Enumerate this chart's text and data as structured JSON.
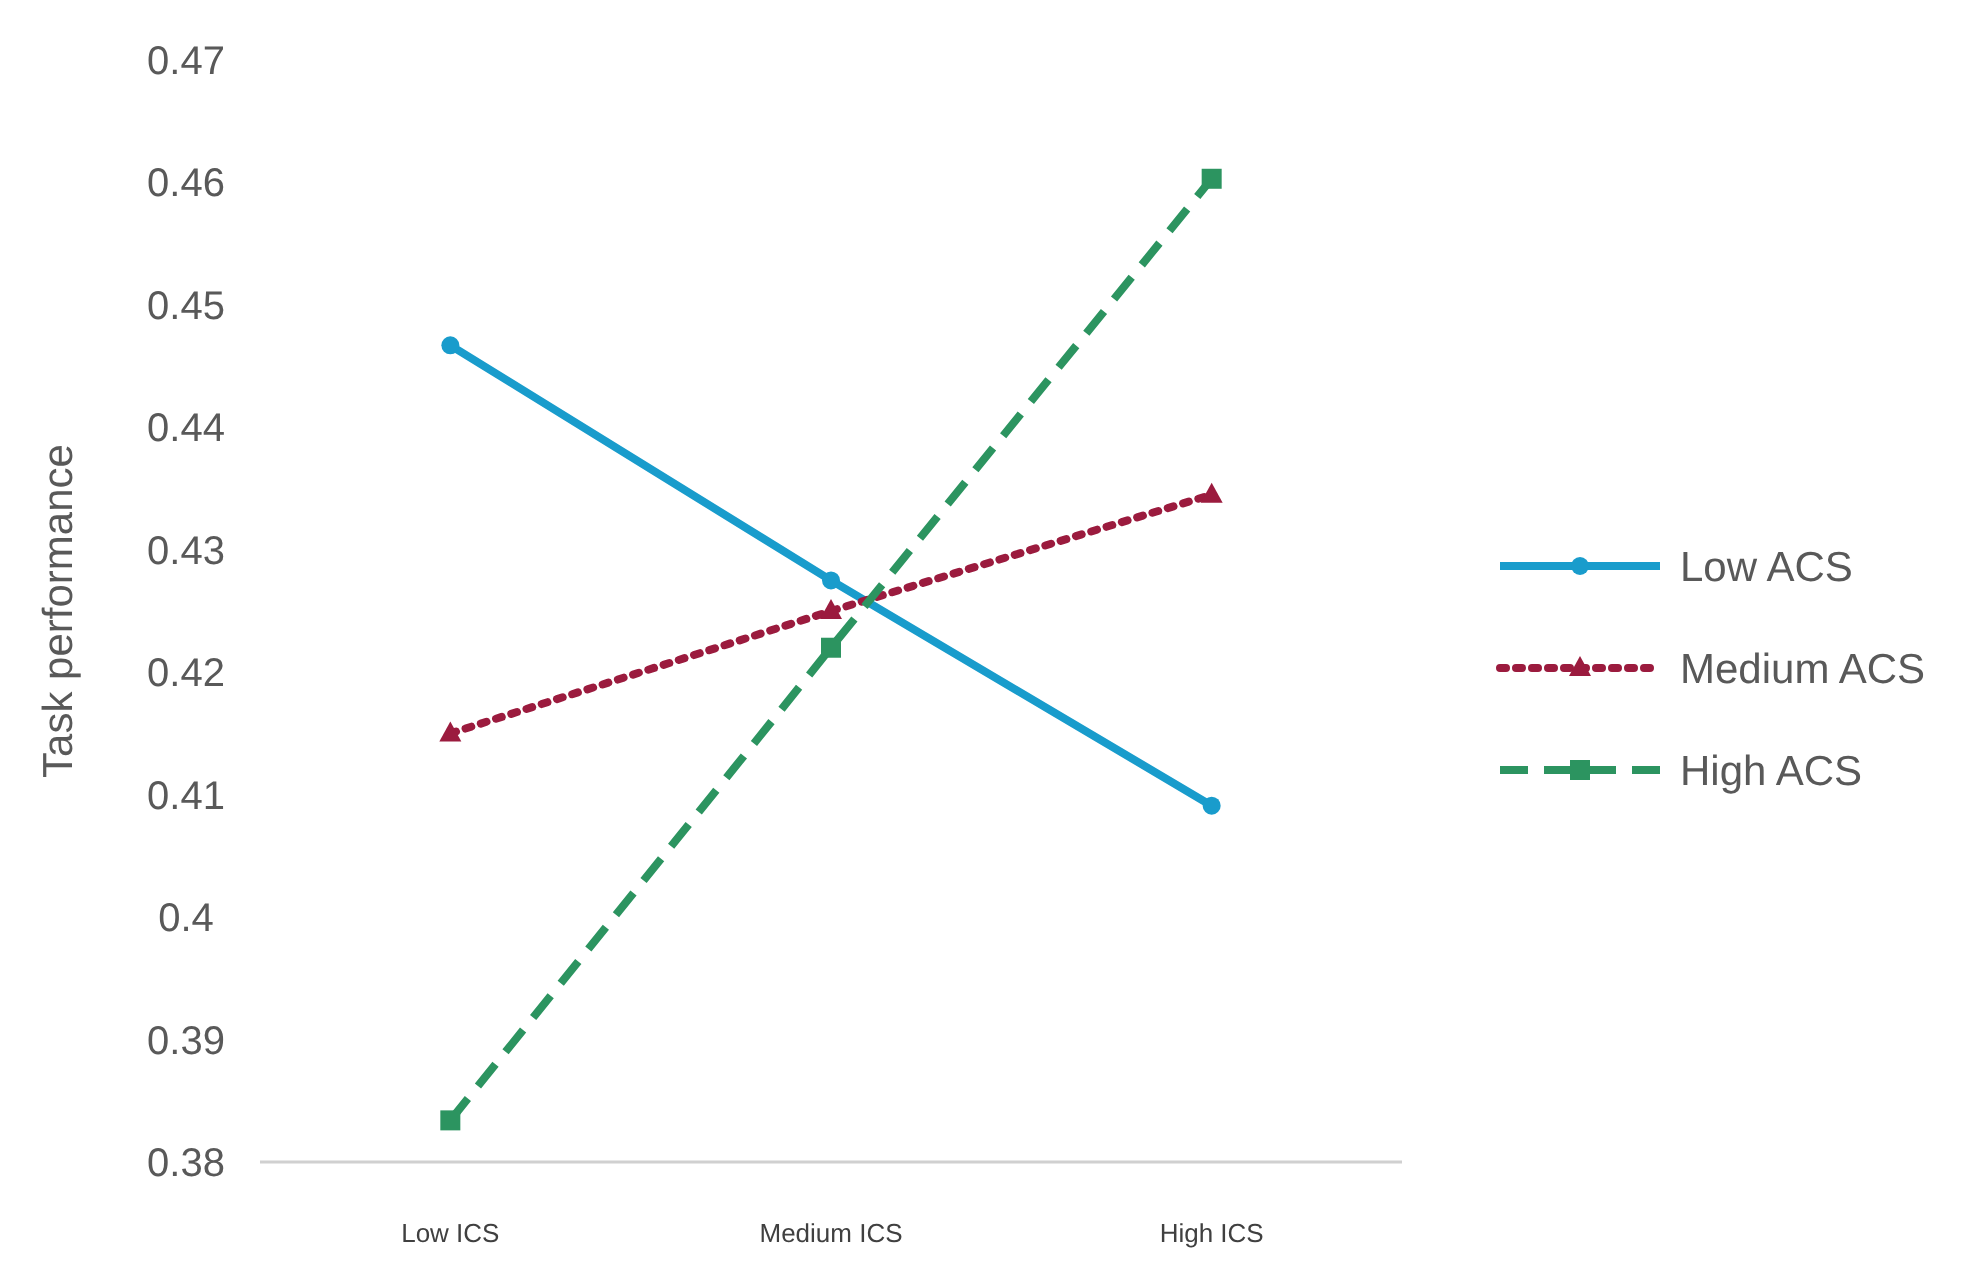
{
  "chart_data": {
    "type": "line",
    "ylabel": "Task performance",
    "categories": [
      "Low ICS",
      "Medium ICS",
      "High ICS"
    ],
    "series": [
      {
        "name": "Low ACS",
        "color": "#199ccc",
        "values": [
          0.4467,
          0.4275,
          0.4091
        ],
        "marker": "circle",
        "line_style": "solid"
      },
      {
        "name": "Medium ACS",
        "color": "#9b1b3e",
        "values": [
          0.415,
          0.425,
          0.4345
        ],
        "marker": "triangle",
        "line_style": "dotted"
      },
      {
        "name": "High ACS",
        "color": "#2c9460",
        "values": [
          0.3834,
          0.422,
          0.4603
        ],
        "marker": "square",
        "line_style": "dashed"
      }
    ],
    "ylim": [
      0.38,
      0.47
    ],
    "yticks": [
      0.38,
      0.39,
      {
        "value": 0.4,
        "label": "0.4"
      },
      0.41,
      0.42,
      0.43,
      0.44,
      0.45,
      0.46,
      0.47
    ],
    "grid": false,
    "legend": "right"
  }
}
